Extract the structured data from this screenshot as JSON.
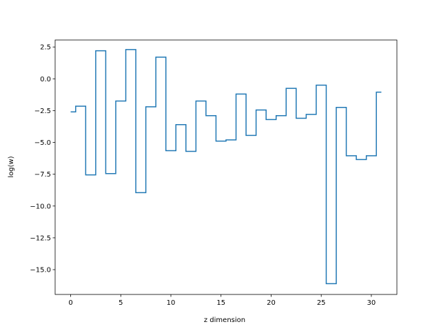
{
  "chart_data": {
    "type": "line",
    "drawstyle": "steps-mid",
    "title": "",
    "xlabel": "z dimension",
    "ylabel": "log(w)",
    "xlim": [
      -1.55,
      32.55
    ],
    "ylim": [
      -16.95,
      3.05
    ],
    "xticks": [
      0,
      5,
      10,
      15,
      20,
      25,
      30
    ],
    "xtick_labels": [
      "0",
      "5",
      "10",
      "15",
      "20",
      "25",
      "30"
    ],
    "yticks": [
      2.5,
      0.0,
      -2.5,
      -5.0,
      -7.5,
      -10.0,
      -12.5,
      -15.0
    ],
    "ytick_labels": [
      "2.5",
      "0.0",
      "−2.5",
      "−5.0",
      "−7.5",
      "−10.0",
      "−12.5",
      "−15.0"
    ],
    "grid": false,
    "series": [
      {
        "color": "#1f77b4",
        "x": [
          0,
          1,
          2,
          3,
          4,
          5,
          6,
          7,
          8,
          9,
          10,
          11,
          12,
          13,
          14,
          15,
          16,
          17,
          18,
          19,
          20,
          21,
          22,
          23,
          24,
          25,
          26,
          27,
          28,
          29,
          30,
          31
        ],
        "y": [
          -2.6,
          -2.15,
          -7.55,
          2.2,
          -7.45,
          -1.75,
          2.3,
          -8.95,
          -2.2,
          1.7,
          -5.65,
          -3.6,
          -5.7,
          -1.75,
          -2.9,
          -4.9,
          -4.8,
          -1.2,
          -4.45,
          -2.45,
          -3.2,
          -2.9,
          -0.75,
          -3.1,
          -2.8,
          -0.5,
          -16.1,
          -2.25,
          -6.05,
          -6.35,
          -6.05,
          -1.05
        ]
      }
    ]
  }
}
